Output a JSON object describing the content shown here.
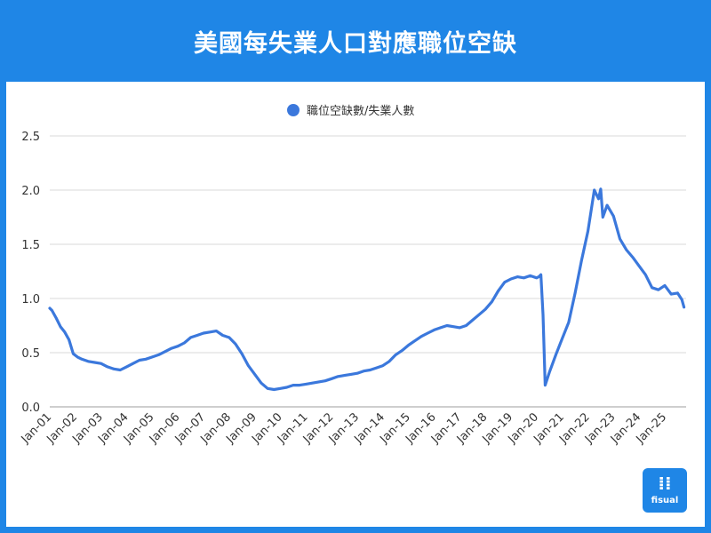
{
  "page": {
    "title": "美國每失業人口對應職位空缺"
  },
  "logo": {
    "text": "fisual"
  },
  "colors": {
    "header_bg": "#1f86e6",
    "series": "#3b78dc",
    "grid": "#d9d9d9",
    "axis_text": "#333333"
  },
  "chart_data": {
    "type": "line",
    "title": "",
    "xlabel": "",
    "ylabel": "",
    "legend": {
      "position": "top"
    },
    "grid": true,
    "ylim": [
      0,
      2.5
    ],
    "y_ticks": [
      "0.0",
      "0.5",
      "1.0",
      "1.5",
      "2.0",
      "2.5"
    ],
    "x_ticks": [
      "Jan-01",
      "Jan-02",
      "Jan-03",
      "Jan-04",
      "Jan-05",
      "Jan-06",
      "Jan-07",
      "Jan-08",
      "Jan-09",
      "Jan-10",
      "Jan-11",
      "Jan-12",
      "Jan-13",
      "Jan-14",
      "Jan-15",
      "Jan-16",
      "Jan-17",
      "Jan-18",
      "Jan-19",
      "Jan-20",
      "Jan-21",
      "Jan-22",
      "Jan-23",
      "Jan-24",
      "Jan-25"
    ],
    "series": [
      {
        "name": "職位空缺數/失業人數",
        "color": "#3b78dc",
        "points": [
          [
            "2000-12",
            0.91
          ],
          [
            "2001-01",
            0.89
          ],
          [
            "2001-03",
            0.82
          ],
          [
            "2001-05",
            0.74
          ],
          [
            "2001-07",
            0.69
          ],
          [
            "2001-09",
            0.62
          ],
          [
            "2001-11",
            0.49
          ],
          [
            "2002-01",
            0.46
          ],
          [
            "2002-03",
            0.44
          ],
          [
            "2002-06",
            0.42
          ],
          [
            "2002-09",
            0.41
          ],
          [
            "2002-12",
            0.4
          ],
          [
            "2003-03",
            0.37
          ],
          [
            "2003-06",
            0.35
          ],
          [
            "2003-09",
            0.34
          ],
          [
            "2003-12",
            0.37
          ],
          [
            "2004-03",
            0.4
          ],
          [
            "2004-06",
            0.43
          ],
          [
            "2004-09",
            0.44
          ],
          [
            "2004-12",
            0.46
          ],
          [
            "2005-03",
            0.48
          ],
          [
            "2005-06",
            0.51
          ],
          [
            "2005-09",
            0.54
          ],
          [
            "2005-12",
            0.56
          ],
          [
            "2006-03",
            0.59
          ],
          [
            "2006-06",
            0.64
          ],
          [
            "2006-09",
            0.66
          ],
          [
            "2006-12",
            0.68
          ],
          [
            "2007-03",
            0.69
          ],
          [
            "2007-06",
            0.7
          ],
          [
            "2007-09",
            0.66
          ],
          [
            "2007-12",
            0.64
          ],
          [
            "2008-03",
            0.58
          ],
          [
            "2008-06",
            0.49
          ],
          [
            "2008-09",
            0.38
          ],
          [
            "2008-12",
            0.3
          ],
          [
            "2009-03",
            0.22
          ],
          [
            "2009-06",
            0.17
          ],
          [
            "2009-09",
            0.16
          ],
          [
            "2009-12",
            0.17
          ],
          [
            "2010-03",
            0.18
          ],
          [
            "2010-06",
            0.2
          ],
          [
            "2010-09",
            0.2
          ],
          [
            "2010-12",
            0.21
          ],
          [
            "2011-03",
            0.22
          ],
          [
            "2011-06",
            0.23
          ],
          [
            "2011-09",
            0.24
          ],
          [
            "2011-12",
            0.26
          ],
          [
            "2012-03",
            0.28
          ],
          [
            "2012-06",
            0.29
          ],
          [
            "2012-09",
            0.3
          ],
          [
            "2012-12",
            0.31
          ],
          [
            "2013-03",
            0.33
          ],
          [
            "2013-06",
            0.34
          ],
          [
            "2013-09",
            0.36
          ],
          [
            "2013-12",
            0.38
          ],
          [
            "2014-03",
            0.42
          ],
          [
            "2014-06",
            0.48
          ],
          [
            "2014-09",
            0.52
          ],
          [
            "2014-12",
            0.57
          ],
          [
            "2015-03",
            0.61
          ],
          [
            "2015-06",
            0.65
          ],
          [
            "2015-09",
            0.68
          ],
          [
            "2015-12",
            0.71
          ],
          [
            "2016-03",
            0.73
          ],
          [
            "2016-06",
            0.75
          ],
          [
            "2016-09",
            0.74
          ],
          [
            "2016-12",
            0.73
          ],
          [
            "2017-03",
            0.75
          ],
          [
            "2017-06",
            0.8
          ],
          [
            "2017-09",
            0.85
          ],
          [
            "2017-12",
            0.9
          ],
          [
            "2018-03",
            0.97
          ],
          [
            "2018-06",
            1.07
          ],
          [
            "2018-09",
            1.15
          ],
          [
            "2018-12",
            1.18
          ],
          [
            "2019-03",
            1.2
          ],
          [
            "2019-06",
            1.19
          ],
          [
            "2019-09",
            1.21
          ],
          [
            "2019-12",
            1.19
          ],
          [
            "2020-01",
            1.2
          ],
          [
            "2020-02",
            1.22
          ],
          [
            "2020-03",
            0.85
          ],
          [
            "2020-04",
            0.2
          ],
          [
            "2020-06",
            0.32
          ],
          [
            "2020-09",
            0.48
          ],
          [
            "2020-12",
            0.63
          ],
          [
            "2021-03",
            0.78
          ],
          [
            "2021-06",
            1.05
          ],
          [
            "2021-09",
            1.35
          ],
          [
            "2021-12",
            1.62
          ],
          [
            "2022-03",
            2.0
          ],
          [
            "2022-05",
            1.92
          ],
          [
            "2022-06",
            2.01
          ],
          [
            "2022-07",
            1.75
          ],
          [
            "2022-09",
            1.86
          ],
          [
            "2022-12",
            1.76
          ],
          [
            "2023-03",
            1.55
          ],
          [
            "2023-06",
            1.45
          ],
          [
            "2023-09",
            1.38
          ],
          [
            "2023-12",
            1.3
          ],
          [
            "2024-03",
            1.22
          ],
          [
            "2024-06",
            1.1
          ],
          [
            "2024-09",
            1.08
          ],
          [
            "2024-12",
            1.12
          ],
          [
            "2025-03",
            1.04
          ],
          [
            "2025-06",
            1.05
          ],
          [
            "2025-08",
            0.99
          ],
          [
            "2025-09",
            0.92
          ]
        ]
      }
    ]
  }
}
